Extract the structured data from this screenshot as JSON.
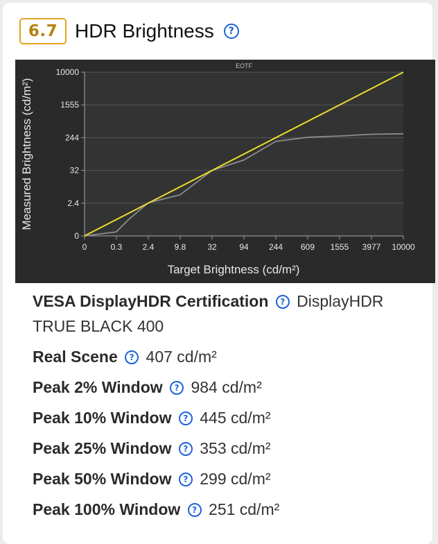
{
  "section": {
    "score": "6.7",
    "title": "HDR Brightness",
    "help_glyph": "?"
  },
  "chart_data": {
    "type": "line",
    "title": "EOTF",
    "xlabel": "Target Brightness (cd/m²)",
    "ylabel": "Measured Brightness (cd/m²)",
    "x_ticks": [
      "0",
      "0.3",
      "2.4",
      "9.8",
      "32",
      "94",
      "244",
      "609",
      "1555",
      "3977",
      "10000"
    ],
    "y_ticks": [
      "0",
      "2.4",
      "32",
      "244",
      "1555",
      "10000"
    ],
    "grid": true,
    "series": [
      {
        "color": "#e6e02e",
        "x": [
          0,
          10000
        ],
        "y": [
          0,
          10000
        ]
      },
      {
        "color": "#8c8c8c",
        "x": [
          0,
          0.3,
          1.1,
          2.4,
          9.8,
          32,
          94,
          244,
          609,
          1555,
          3977,
          10000
        ],
        "y": [
          0,
          0.3,
          1.2,
          2.8,
          10,
          32,
          100,
          220,
          260,
          310,
          380,
          400
        ]
      }
    ]
  },
  "specs": [
    {
      "label": "VESA DisplayHDR Certification",
      "value": "DisplayHDR TRUE BLACK 400"
    },
    {
      "label": "Real Scene",
      "value": "407 cd/m²"
    },
    {
      "label": "Peak 2% Window",
      "value": "984 cd/m²"
    },
    {
      "label": "Peak 10% Window",
      "value": "445 cd/m²"
    },
    {
      "label": "Peak 25% Window",
      "value": "353 cd/m²"
    },
    {
      "label": "Peak 50% Window",
      "value": "299 cd/m²"
    },
    {
      "label": "Peak 100% Window",
      "value": "251 cd/m²"
    }
  ]
}
